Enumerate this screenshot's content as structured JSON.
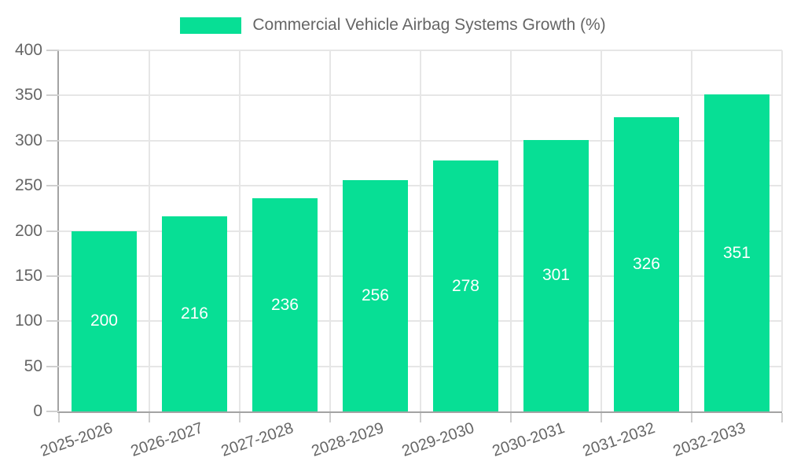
{
  "chart_data": {
    "type": "bar",
    "title": "Commercial Vehicle Airbag Systems Growth (%)",
    "categories": [
      "2025-2026",
      "2026-2027",
      "2027-2028",
      "2028-2029",
      "2029-2030",
      "2030-2031",
      "2031-2032",
      "2032-2033"
    ],
    "values": [
      200,
      216,
      236,
      256,
      278,
      301,
      326,
      351
    ],
    "value_labels": [
      "200",
      "216",
      "236",
      "256",
      "278",
      "301",
      "326",
      "351"
    ],
    "xlabel": "",
    "ylabel": "",
    "ylim": [
      0,
      400
    ],
    "ytick_step": 50,
    "yticks": [
      0,
      50,
      100,
      150,
      200,
      250,
      300,
      350,
      400
    ],
    "grid": true,
    "legend_position": "top",
    "colors": {
      "bar": "#07DF95",
      "value_label": "#FFFFFF",
      "axis_text": "#666666",
      "grid_line": "#E6E6E6",
      "tick_line": "#CFCFCF",
      "axis_line": "#A3A3A3",
      "background": "#FFFFFF"
    }
  }
}
